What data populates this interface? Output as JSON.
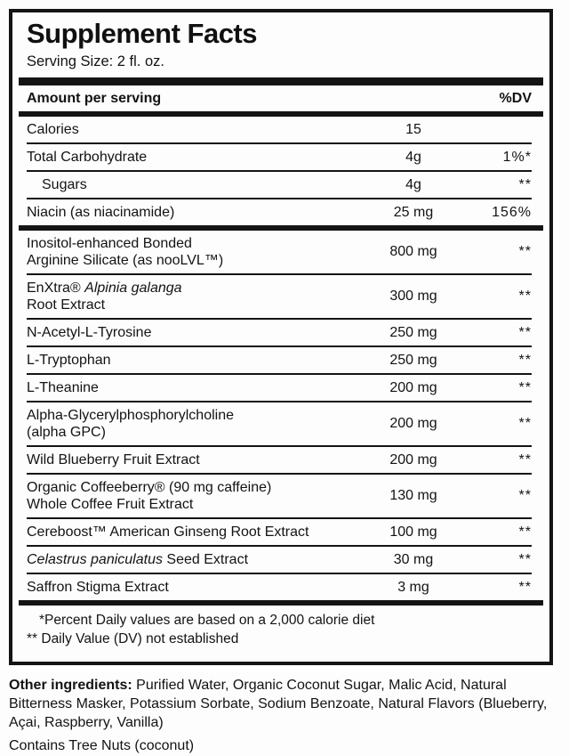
{
  "panel": {
    "title": "Supplement Facts",
    "serving_size": "Serving Size: 2 fl. oz.",
    "header": {
      "amount": "Amount per serving",
      "dv": "%DV"
    },
    "sections": [
      {
        "rows": [
          {
            "name_lines": [
              [
                {
                  "t": "Calories"
                }
              ]
            ],
            "amount": "15",
            "dv": "",
            "indent": false
          },
          {
            "name_lines": [
              [
                {
                  "t": "Total Carbohydrate"
                }
              ]
            ],
            "amount": "4g",
            "dv": "1%*",
            "indent": false
          },
          {
            "name_lines": [
              [
                {
                  "t": "Sugars"
                }
              ]
            ],
            "amount": "4g",
            "dv": "**",
            "indent": true
          },
          {
            "name_lines": [
              [
                {
                  "t": "Niacin (as niacinamide)"
                }
              ]
            ],
            "amount": "25 mg",
            "dv": "156%",
            "indent": false
          }
        ]
      },
      {
        "rows": [
          {
            "name_lines": [
              [
                {
                  "t": "Inositol-enhanced Bonded"
                }
              ],
              [
                {
                  "t": "Arginine Silicate (as nooLVL™)"
                }
              ]
            ],
            "amount": "800 mg",
            "dv": "**",
            "indent": false
          },
          {
            "name_lines": [
              [
                {
                  "t": "EnXtra® "
                },
                {
                  "t": "Alpinia galanga",
                  "i": true
                }
              ],
              [
                {
                  "t": "Root Extract"
                }
              ]
            ],
            "amount": "300 mg",
            "dv": "**",
            "indent": false
          },
          {
            "name_lines": [
              [
                {
                  "t": "N-Acetyl-L-Tyrosine"
                }
              ]
            ],
            "amount": "250 mg",
            "dv": "**",
            "indent": false
          },
          {
            "name_lines": [
              [
                {
                  "t": "L-Tryptophan"
                }
              ]
            ],
            "amount": "250 mg",
            "dv": "**",
            "indent": false
          },
          {
            "name_lines": [
              [
                {
                  "t": "L-Theanine"
                }
              ]
            ],
            "amount": "200 mg",
            "dv": "**",
            "indent": false
          },
          {
            "name_lines": [
              [
                {
                  "t": "Alpha-Glycerylphosphorylcholine"
                }
              ],
              [
                {
                  "t": "(alpha GPC)"
                }
              ]
            ],
            "amount": "200 mg",
            "dv": "**",
            "indent": false
          },
          {
            "name_lines": [
              [
                {
                  "t": "Wild Blueberry Fruit Extract"
                }
              ]
            ],
            "amount": "200 mg",
            "dv": "**",
            "indent": false
          },
          {
            "name_lines": [
              [
                {
                  "t": "Organic Coffeeberry® (90 mg caffeine)"
                }
              ],
              [
                {
                  "t": "Whole Coffee Fruit Extract"
                }
              ]
            ],
            "amount": "130 mg",
            "dv": "**",
            "indent": false
          },
          {
            "name_lines": [
              [
                {
                  "t": "Cereboost™ American Ginseng Root Extract"
                }
              ]
            ],
            "amount": "100 mg",
            "dv": "**",
            "indent": false
          },
          {
            "name_lines": [
              [
                {
                  "t": "Celastrus paniculatus",
                  "i": true
                },
                {
                  "t": " Seed Extract"
                }
              ]
            ],
            "amount": "30 mg",
            "dv": "**",
            "indent": false
          },
          {
            "name_lines": [
              [
                {
                  "t": "Saffron Stigma Extract"
                }
              ]
            ],
            "amount": "3 mg",
            "dv": "**",
            "indent": false
          }
        ]
      }
    ],
    "footnotes": [
      {
        "text": "*Percent Daily values are based on a 2,000 calorie diet",
        "indent": true
      },
      {
        "text": "** Daily Value (DV) not established",
        "indent": false
      }
    ]
  },
  "other_ingredients": {
    "label": "Other ingredients:",
    "text": "Purified Water, Organic Coconut Sugar, Malic Acid, Natural Bitterness Masker, Potassium Sorbate, Sodium Benzoate, Natural Flavors (Blueberry, Açai, Raspberry, Vanilla)"
  },
  "contains": "Contains Tree Nuts (coconut)"
}
